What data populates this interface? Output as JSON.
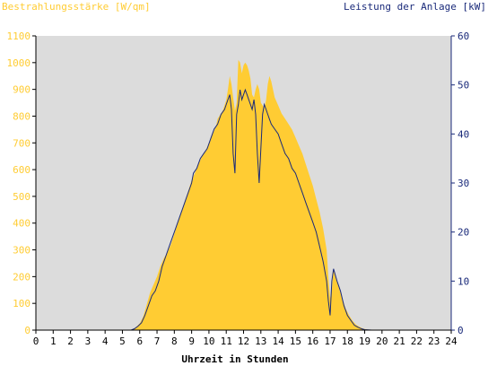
{
  "chart_data": {
    "type": "area",
    "title_left": "Bestrahlungsstärke [W/qm]",
    "title_right": "Leistung der Anlage [kW]",
    "xlabel": "Uhrzeit in Stunden",
    "xlim": [
      0,
      24
    ],
    "x_ticks": [
      "0",
      "1",
      "2",
      "3",
      "4",
      "5",
      "6",
      "7",
      "8",
      "9",
      "10",
      "11",
      "12",
      "13",
      "14",
      "15",
      "16",
      "17",
      "18",
      "19",
      "20",
      "21",
      "22",
      "23",
      "24"
    ],
    "y_left": {
      "lim": [
        0,
        1100
      ],
      "ticks": [
        "0",
        "100",
        "200",
        "300",
        "400",
        "500",
        "600",
        "700",
        "800",
        "900",
        "1000",
        "1100"
      ]
    },
    "y_right": {
      "lim": [
        0,
        60
      ],
      "ticks": [
        "0",
        "10",
        "20",
        "30",
        "40",
        "50",
        "60"
      ]
    },
    "grid": false,
    "colors": {
      "plot_bg": "#dcdcdc",
      "irradiance_fill": "#ffcc33",
      "power_line": "#1a2a7a",
      "left_axis_text": "#ffcc33",
      "right_axis_text": "#1a2a7a",
      "x_axis_text": "#000000"
    },
    "series": [
      {
        "name": "Bestrahlungsstärke [W/qm]",
        "axis": "left",
        "style": "area",
        "x": [
          0,
          5.4,
          5.6,
          5.8,
          6.0,
          6.2,
          6.4,
          6.6,
          6.8,
          7.0,
          7.2,
          7.4,
          7.6,
          7.8,
          8.0,
          8.2,
          8.4,
          8.6,
          8.8,
          9.0,
          9.2,
          9.4,
          9.6,
          9.8,
          10.0,
          10.2,
          10.4,
          10.5,
          10.6,
          10.8,
          11.0,
          11.1,
          11.2,
          11.3,
          11.4,
          11.5,
          11.6,
          11.7,
          11.8,
          11.9,
          12.0,
          12.1,
          12.2,
          12.3,
          12.4,
          12.5,
          12.6,
          12.7,
          12.8,
          12.9,
          13.0,
          13.1,
          13.2,
          13.3,
          13.4,
          13.5,
          13.6,
          13.7,
          13.8,
          14.0,
          14.2,
          14.4,
          14.6,
          14.8,
          15.0,
          15.2,
          15.4,
          15.6,
          15.8,
          16.0,
          16.2,
          16.4,
          16.6,
          16.8,
          16.9,
          17.0,
          17.1,
          17.2,
          17.3,
          17.5,
          17.7,
          17.9,
          18.1,
          18.3,
          18.5,
          18.7,
          18.9,
          19.1,
          19.3,
          19.5,
          24
        ],
        "values": [
          0,
          0,
          2,
          12,
          25,
          50,
          95,
          140,
          170,
          200,
          240,
          270,
          290,
          320,
          360,
          400,
          440,
          480,
          520,
          560,
          590,
          620,
          650,
          670,
          700,
          730,
          760,
          790,
          800,
          820,
          860,
          900,
          950,
          920,
          870,
          820,
          850,
          1010,
          1000,
          960,
          990,
          1000,
          990,
          970,
          940,
          880,
          870,
          900,
          920,
          900,
          850,
          840,
          830,
          860,
          920,
          950,
          930,
          900,
          870,
          840,
          810,
          790,
          770,
          750,
          720,
          690,
          660,
          620,
          580,
          540,
          490,
          440,
          380,
          300,
          200,
          120,
          150,
          230,
          200,
          160,
          120,
          80,
          55,
          35,
          20,
          12,
          6,
          3,
          1,
          0,
          0
        ]
      },
      {
        "name": "Leistung der Anlage [kW]",
        "axis": "right",
        "style": "line",
        "x": [
          0,
          5.5,
          5.7,
          5.9,
          6.1,
          6.3,
          6.5,
          6.7,
          6.9,
          7.1,
          7.3,
          7.5,
          7.7,
          7.9,
          8.1,
          8.3,
          8.5,
          8.7,
          8.9,
          9.0,
          9.1,
          9.3,
          9.5,
          9.7,
          9.9,
          10.1,
          10.3,
          10.5,
          10.7,
          10.9,
          11.0,
          11.1,
          11.2,
          11.3,
          11.4,
          11.5,
          11.6,
          11.7,
          11.8,
          11.9,
          12.0,
          12.1,
          12.2,
          12.3,
          12.4,
          12.5,
          12.6,
          12.7,
          12.8,
          12.9,
          13.0,
          13.1,
          13.2,
          13.3,
          13.4,
          13.5,
          13.6,
          13.8,
          14.0,
          14.2,
          14.4,
          14.6,
          14.8,
          15.0,
          15.2,
          15.4,
          15.6,
          15.8,
          16.0,
          16.2,
          16.4,
          16.6,
          16.8,
          16.9,
          17.0,
          17.1,
          17.2,
          17.4,
          17.6,
          17.8,
          18.0,
          18.2,
          18.4,
          18.6,
          18.8,
          19.0,
          19.2,
          19.4,
          24
        ],
        "values": [
          0,
          0,
          0.3,
          0.8,
          1.5,
          3,
          5,
          7,
          8,
          10,
          13,
          15,
          17,
          19,
          21,
          23,
          25,
          27,
          29,
          30,
          32,
          33,
          35,
          36,
          37,
          39,
          41,
          42,
          44,
          45,
          46,
          47,
          48,
          45,
          36,
          32,
          44,
          46,
          49,
          47,
          48,
          49,
          48,
          47,
          46,
          45,
          47,
          44,
          36,
          30,
          37,
          44,
          46,
          45,
          44,
          43,
          42,
          41,
          40,
          38,
          36,
          35,
          33,
          32,
          30,
          28,
          26,
          24,
          22,
          20,
          17,
          14,
          10,
          6,
          3,
          10,
          12.5,
          10,
          8,
          5,
          3,
          2,
          1,
          0.6,
          0.3,
          0.1,
          0.05,
          0,
          0
        ]
      }
    ]
  }
}
